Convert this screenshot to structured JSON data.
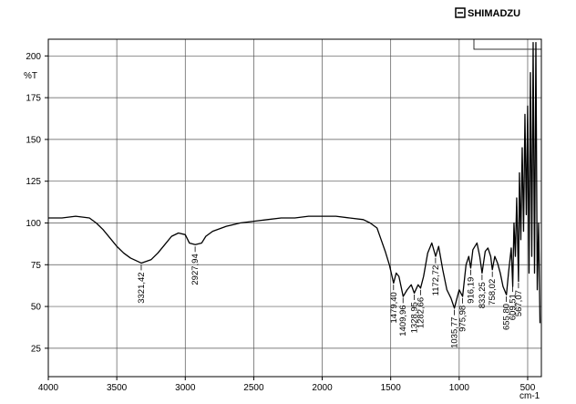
{
  "chart_data": {
    "type": "line",
    "logo": "SHIMADZU",
    "ylabel": "%T",
    "xlabel": "cm-1",
    "xlim": [
      4000,
      400
    ],
    "ylim": [
      8,
      210
    ],
    "xticks": [
      4000,
      3500,
      3000,
      2500,
      2000,
      1500,
      1000,
      500
    ],
    "yticks": [
      25,
      50,
      75,
      100,
      125,
      150,
      175,
      200
    ],
    "grid": true,
    "color": "#000000",
    "x": [
      4000,
      3900,
      3800,
      3700,
      3650,
      3600,
      3550,
      3500,
      3450,
      3400,
      3321,
      3250,
      3200,
      3150,
      3100,
      3050,
      3000,
      2970,
      2927,
      2880,
      2850,
      2800,
      2700,
      2600,
      2500,
      2400,
      2300,
      2200,
      2100,
      2000,
      1900,
      1800,
      1700,
      1650,
      1600,
      1570,
      1540,
      1510,
      1479,
      1460,
      1440,
      1409,
      1380,
      1350,
      1328,
      1300,
      1282,
      1260,
      1230,
      1200,
      1172,
      1150,
      1120,
      1090,
      1060,
      1035,
      1000,
      975,
      950,
      930,
      916,
      900,
      870,
      850,
      833,
      810,
      790,
      770,
      758,
      740,
      720,
      700,
      680,
      655,
      640,
      620,
      609,
      600,
      590,
      580,
      567,
      560,
      550,
      540,
      530,
      520,
      510,
      500,
      490,
      480,
      470,
      460,
      450,
      440,
      430,
      420,
      410
    ],
    "values": [
      103,
      103,
      104,
      103,
      100,
      96,
      91,
      86,
      82,
      79,
      76,
      78,
      82,
      87,
      92,
      94,
      93,
      88,
      87,
      88,
      92,
      95,
      98,
      100,
      101,
      102,
      103,
      103,
      104,
      104,
      104,
      103,
      102,
      100,
      97,
      90,
      83,
      75,
      64,
      70,
      68,
      56,
      60,
      63,
      58,
      63,
      61,
      68,
      82,
      88,
      80,
      86,
      72,
      60,
      55,
      49,
      60,
      56,
      75,
      80,
      73,
      84,
      88,
      80,
      70,
      83,
      85,
      80,
      72,
      80,
      76,
      70,
      62,
      57,
      70,
      85,
      62,
      100,
      80,
      115,
      65,
      130,
      90,
      145,
      95,
      165,
      105,
      170,
      70,
      190,
      80,
      208,
      70,
      208,
      60,
      100,
      40
    ],
    "peaks": [
      {
        "value": 3321.42,
        "label": "3321,42"
      },
      {
        "value": 2927.94,
        "label": "2927,94"
      },
      {
        "value": 1479.4,
        "label": "1479,40"
      },
      {
        "value": 1409.96,
        "label": "1409,96"
      },
      {
        "value": 1328.95,
        "label": "1328,95"
      },
      {
        "value": 1282.66,
        "label": "1282,66"
      },
      {
        "value": 1172.72,
        "label": "1172,72"
      },
      {
        "value": 1035.77,
        "label": "1035,77"
      },
      {
        "value": 975.98,
        "label": "975,98"
      },
      {
        "value": 916.19,
        "label": "916,19"
      },
      {
        "value": 833.25,
        "label": "833,25"
      },
      {
        "value": 758.02,
        "label": "758,02"
      },
      {
        "value": 655.8,
        "label": "655,80"
      },
      {
        "value": 609.51,
        "label": "609,51"
      },
      {
        "value": 567.07,
        "label": "567,07"
      }
    ]
  }
}
